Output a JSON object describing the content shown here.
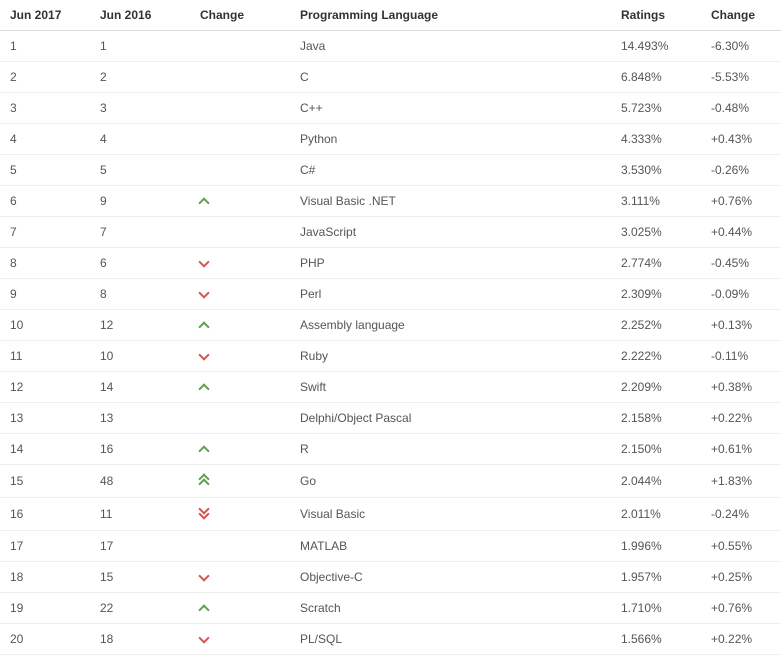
{
  "table": {
    "headers": {
      "rank_current": "Jun 2017",
      "rank_prev": "Jun 2016",
      "change_icon": "Change",
      "language": "Programming Language",
      "ratings": "Ratings",
      "change_pct": "Change"
    },
    "icon_colors": {
      "up": "#5fa04e",
      "down": "#d9534f"
    },
    "rows": [
      {
        "rank_current": "1",
        "rank_prev": "1",
        "change_icon": "",
        "language": "Java",
        "ratings": "14.493%",
        "change_pct": "-6.30%"
      },
      {
        "rank_current": "2",
        "rank_prev": "2",
        "change_icon": "",
        "language": "C",
        "ratings": "6.848%",
        "change_pct": "-5.53%"
      },
      {
        "rank_current": "3",
        "rank_prev": "3",
        "change_icon": "",
        "language": "C++",
        "ratings": "5.723%",
        "change_pct": "-0.48%"
      },
      {
        "rank_current": "4",
        "rank_prev": "4",
        "change_icon": "",
        "language": "Python",
        "ratings": "4.333%",
        "change_pct": "+0.43%"
      },
      {
        "rank_current": "5",
        "rank_prev": "5",
        "change_icon": "",
        "language": "C#",
        "ratings": "3.530%",
        "change_pct": "-0.26%"
      },
      {
        "rank_current": "6",
        "rank_prev": "9",
        "change_icon": "up",
        "language": "Visual Basic .NET",
        "ratings": "3.111%",
        "change_pct": "+0.76%"
      },
      {
        "rank_current": "7",
        "rank_prev": "7",
        "change_icon": "",
        "language": "JavaScript",
        "ratings": "3.025%",
        "change_pct": "+0.44%"
      },
      {
        "rank_current": "8",
        "rank_prev": "6",
        "change_icon": "down",
        "language": "PHP",
        "ratings": "2.774%",
        "change_pct": "-0.45%"
      },
      {
        "rank_current": "9",
        "rank_prev": "8",
        "change_icon": "down",
        "language": "Perl",
        "ratings": "2.309%",
        "change_pct": "-0.09%"
      },
      {
        "rank_current": "10",
        "rank_prev": "12",
        "change_icon": "up",
        "language": "Assembly language",
        "ratings": "2.252%",
        "change_pct": "+0.13%"
      },
      {
        "rank_current": "11",
        "rank_prev": "10",
        "change_icon": "down",
        "language": "Ruby",
        "ratings": "2.222%",
        "change_pct": "-0.11%"
      },
      {
        "rank_current": "12",
        "rank_prev": "14",
        "change_icon": "up",
        "language": "Swift",
        "ratings": "2.209%",
        "change_pct": "+0.38%"
      },
      {
        "rank_current": "13",
        "rank_prev": "13",
        "change_icon": "",
        "language": "Delphi/Object Pascal",
        "ratings": "2.158%",
        "change_pct": "+0.22%"
      },
      {
        "rank_current": "14",
        "rank_prev": "16",
        "change_icon": "up",
        "language": "R",
        "ratings": "2.150%",
        "change_pct": "+0.61%"
      },
      {
        "rank_current": "15",
        "rank_prev": "48",
        "change_icon": "up-double",
        "language": "Go",
        "ratings": "2.044%",
        "change_pct": "+1.83%"
      },
      {
        "rank_current": "16",
        "rank_prev": "11",
        "change_icon": "down-double",
        "language": "Visual Basic",
        "ratings": "2.011%",
        "change_pct": "-0.24%"
      },
      {
        "rank_current": "17",
        "rank_prev": "17",
        "change_icon": "",
        "language": "MATLAB",
        "ratings": "1.996%",
        "change_pct": "+0.55%"
      },
      {
        "rank_current": "18",
        "rank_prev": "15",
        "change_icon": "down",
        "language": "Objective-C",
        "ratings": "1.957%",
        "change_pct": "+0.25%"
      },
      {
        "rank_current": "19",
        "rank_prev": "22",
        "change_icon": "up",
        "language": "Scratch",
        "ratings": "1.710%",
        "change_pct": "+0.76%"
      },
      {
        "rank_current": "20",
        "rank_prev": "18",
        "change_icon": "down",
        "language": "PL/SQL",
        "ratings": "1.566%",
        "change_pct": "+0.22%"
      }
    ]
  }
}
